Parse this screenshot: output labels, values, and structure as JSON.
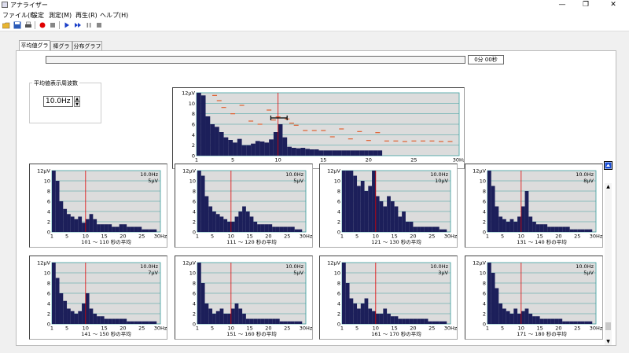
{
  "window": {
    "title": "アナライザー"
  },
  "window_controls": {
    "minimize": "—",
    "maximize": "❐",
    "close": "✕"
  },
  "menu": [
    "ファイル(F)",
    "設定",
    "測定(M)",
    "再生(R)",
    "ヘルプ(H)"
  ],
  "toolbar": {
    "icons": [
      "open-folder-icon",
      "save-icon",
      "print-icon",
      "record-icon",
      "stop-icon",
      "play-icon",
      "fast-forward-icon",
      "pause-icon",
      "stop-square-icon"
    ]
  },
  "tabs": [
    "平均値グラフ",
    "棒グラフ",
    "分布グラフ"
  ],
  "time_display": "0分 00秒",
  "settings": {
    "group_label": "平均値表示周波数",
    "frequency_value": "10.0Hz"
  },
  "colors": {
    "bar": "#1c1f5a",
    "plot_bg": "#dcdcdc",
    "grid": "#3a9e9e",
    "marker": "#e00000",
    "dash": "#e06030"
  },
  "chart_data": [
    {
      "type": "bar",
      "x": [
        1,
        1.5,
        2,
        2.5,
        3,
        3.5,
        4,
        4.5,
        5,
        5.5,
        6,
        6.5,
        7,
        7.5,
        8,
        8.5,
        9,
        9.5,
        10,
        10.5,
        11,
        11.5,
        12,
        12.5,
        13,
        13.5,
        14,
        14.5,
        15,
        15.5,
        16,
        16.5,
        17,
        17.5,
        18,
        18.5,
        19,
        19.5,
        20,
        20.5,
        21
      ],
      "values": [
        12,
        11.5,
        7.5,
        6,
        5.5,
        4.5,
        3.5,
        3,
        2.5,
        3.2,
        2,
        2,
        2.3,
        2.8,
        2.7,
        2.5,
        3.1,
        4.5,
        6,
        3.5,
        1.7,
        1.5,
        1.4,
        1.5,
        1.3,
        1.2,
        1.2,
        1,
        1,
        1,
        1,
        1,
        1,
        1,
        1,
        1,
        1,
        1,
        1,
        1,
        1
      ],
      "dash_x": [
        3,
        3.5,
        4,
        5,
        6,
        7,
        8,
        9,
        9.5,
        10,
        11,
        11.5,
        12,
        13,
        14,
        15,
        16,
        17,
        18,
        19,
        20,
        21,
        22,
        23,
        24,
        25,
        26,
        27,
        28,
        29
      ],
      "dash_values": [
        11.5,
        10.5,
        9.2,
        8,
        9.6,
        6.6,
        6,
        8.7,
        6.8,
        7.4,
        7,
        6.2,
        5.8,
        4.8,
        4.8,
        4.8,
        3.6,
        5.1,
        3.2,
        4.6,
        2.9,
        4.4,
        2.8,
        2.8,
        2.7,
        2.8,
        2.8,
        2.8,
        2.7,
        2.7
      ],
      "marker_x": 10,
      "range_bar": [
        9.2,
        11
      ],
      "range_y": 7.2,
      "yticks": [
        "12μV",
        "10",
        "8",
        "6",
        "4",
        "2",
        "0"
      ],
      "xticks": [
        "1",
        "5",
        "10",
        "15",
        "20",
        "25",
        "30Hz"
      ],
      "ylim": [
        0,
        12
      ],
      "xlim": [
        1,
        30
      ]
    },
    {
      "type": "bar",
      "freq_label": "10.0Hz",
      "amp_label": "5μV",
      "caption": "101 ～ 110 秒の平均",
      "values": [
        12,
        10,
        6,
        4.5,
        3.5,
        3,
        2.5,
        3,
        1.8,
        2.5,
        3.5,
        2.5,
        1.5,
        1.5,
        1.5,
        1.5,
        1,
        1,
        1.5,
        1.5,
        1,
        1,
        1,
        1,
        0.5,
        0.5,
        0.5,
        0.5
      ],
      "marker_x": 10,
      "yticks": [
        "12μV",
        "10",
        "8",
        "6",
        "4",
        "2",
        "0"
      ],
      "xticks": [
        "1",
        "5",
        "10",
        "15",
        "20",
        "25",
        "30Hz"
      ]
    },
    {
      "type": "bar",
      "freq_label": "10.0Hz",
      "amp_label": "5μV",
      "caption": "111 ～ 120 秒の平均",
      "values": [
        12,
        11,
        7,
        5,
        4,
        3.5,
        3,
        2.5,
        2,
        2,
        3,
        4,
        5,
        4,
        3,
        2,
        1.5,
        1.5,
        1.5,
        1.5,
        1,
        1,
        1,
        1,
        1,
        1,
        0.5,
        0.5
      ],
      "marker_x": 10,
      "yticks": [
        "12μV",
        "10",
        "8",
        "6",
        "4",
        "2",
        "0"
      ],
      "xticks": [
        "1",
        "5",
        "10",
        "15",
        "20",
        "25",
        "30Hz"
      ]
    },
    {
      "type": "bar",
      "freq_label": "10.0Hz",
      "amp_label": "10μV",
      "caption": "121 ～ 130 秒の平均",
      "values": [
        12,
        12,
        12,
        11,
        9,
        10,
        8,
        9,
        12,
        7,
        6,
        5,
        7,
        6,
        5,
        3,
        4,
        2,
        2,
        1,
        1,
        1,
        1,
        1,
        1,
        1,
        0.5,
        0.5
      ],
      "marker_x": 10,
      "yticks": [
        "12μV",
        "10",
        "8",
        "6",
        "4",
        "2",
        "0"
      ],
      "xticks": [
        "1",
        "5",
        "10",
        "15",
        "20",
        "25",
        "30Hz"
      ]
    },
    {
      "type": "bar",
      "freq_label": "10.0Hz",
      "amp_label": "8μV",
      "caption": "131 ～ 140 秒の平均",
      "values": [
        12,
        9,
        5,
        3,
        2.5,
        2,
        2.5,
        2,
        3,
        5,
        8,
        3,
        2,
        1.5,
        1.5,
        1.5,
        1,
        1,
        1,
        1,
        1,
        1,
        0.5,
        0.5,
        0.5,
        0.5,
        0.5,
        0.5
      ],
      "marker_x": 10,
      "yticks": [
        "12μV",
        "10",
        "8",
        "6",
        "4",
        "2",
        "0"
      ],
      "xticks": [
        "1",
        "5",
        "10",
        "15",
        "20",
        "25",
        "30Hz"
      ]
    },
    {
      "type": "bar",
      "freq_label": "10.0Hz",
      "amp_label": "7μV",
      "caption": "141 ～ 150 秒の平均",
      "values": [
        12,
        9,
        6,
        4.5,
        3,
        2.5,
        2,
        2.5,
        4,
        6,
        3,
        2,
        1.5,
        1.5,
        1,
        1,
        1,
        1,
        1,
        1,
        0.5,
        0.5,
        0.5,
        0.5,
        0.5,
        0.5,
        0.5,
        0.5
      ],
      "marker_x": 10,
      "yticks": [
        "12μV",
        "10",
        "8",
        "6",
        "4",
        "2",
        "0"
      ],
      "xticks": [
        "1",
        "5",
        "10",
        "15",
        "20",
        "25",
        "30Hz"
      ]
    },
    {
      "type": "bar",
      "freq_label": "10.0Hz",
      "amp_label": "5μV",
      "caption": "151 ～ 160 秒の平均",
      "values": [
        12,
        8,
        4,
        3,
        2,
        2.5,
        3,
        2,
        2,
        3,
        4,
        3,
        2,
        1,
        1,
        1,
        1,
        1,
        1,
        1,
        1,
        1,
        0.5,
        0.5,
        0.5,
        0.5,
        0.5,
        0.5
      ],
      "marker_x": 10,
      "yticks": [
        "12μV",
        "10",
        "8",
        "6",
        "4",
        "2",
        "0"
      ],
      "xticks": [
        "1",
        "5",
        "10",
        "15",
        "20",
        "25",
        "30Hz"
      ]
    },
    {
      "type": "bar",
      "freq_label": "10.0Hz",
      "amp_label": "3μV",
      "caption": "161 ～ 170 秒の平均",
      "values": [
        12,
        8,
        5,
        4,
        3,
        4,
        5,
        3,
        2.5,
        2,
        2,
        3,
        2,
        1.5,
        1.5,
        1,
        1,
        1,
        1,
        1,
        1,
        1,
        1,
        0.5,
        0.5,
        0.5,
        0.5,
        0.5
      ],
      "marker_x": 10,
      "yticks": [
        "12μV",
        "10",
        "8",
        "6",
        "4",
        "2",
        "0"
      ],
      "xticks": [
        "1",
        "5",
        "10",
        "15",
        "20",
        "25",
        "30Hz"
      ]
    },
    {
      "type": "bar",
      "freq_label": "10.0Hz",
      "amp_label": "5μV",
      "caption": "171 ～ 180 秒の平均",
      "values": [
        12,
        10,
        7,
        4,
        3,
        2.5,
        2,
        3,
        2,
        2.5,
        3,
        2,
        1.5,
        1.5,
        1,
        1,
        1,
        1,
        1,
        1,
        0.5,
        0.5,
        0.5,
        0.5,
        0.5,
        0.5,
        0.5,
        0.5
      ],
      "marker_x": 10,
      "yticks": [
        "12μV",
        "10",
        "8",
        "6",
        "4",
        "2",
        "0"
      ],
      "xticks": [
        "1",
        "5",
        "10",
        "15",
        "20",
        "25",
        "30Hz"
      ]
    }
  ]
}
